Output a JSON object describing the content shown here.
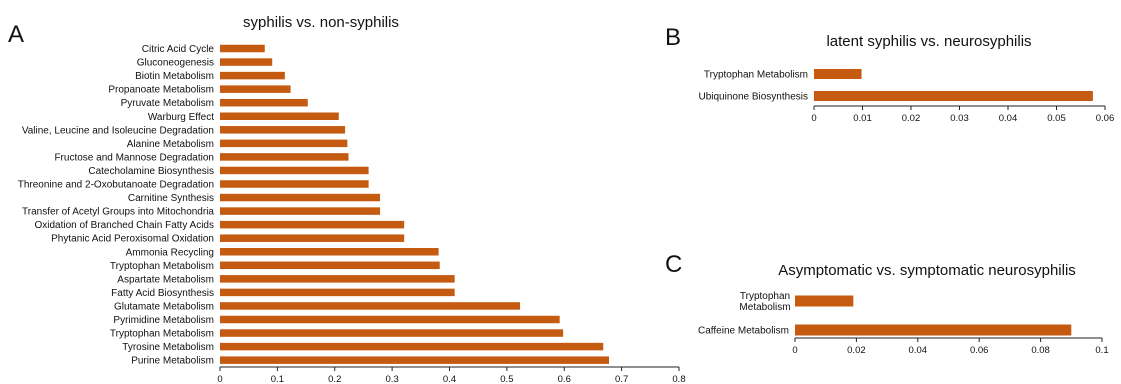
{
  "chart_data": [
    {
      "panel": "A",
      "type": "bar",
      "orientation": "horizontal",
      "title": "syphilis vs. non-syphilis",
      "categories": [
        "Citric Acid Cycle",
        "Gluconeogenesis",
        "Biotin Metabolism",
        "Propanoate Metabolism",
        "Pyruvate Metabolism",
        "Warburg Effect",
        "Valine, Leucine and Isoleucine Degradation",
        "Alanine Metabolism",
        "Fructose and Mannose Degradation",
        "Catecholamine Biosynthesis",
        "Threonine and 2-Oxobutanoate Degradation",
        "Carnitine Synthesis",
        "Transfer of Acetyl Groups into Mitochondria",
        "Oxidation of Branched Chain Fatty Acids",
        "Phytanic Acid Peroxisomal Oxidation",
        "Ammonia Recycling",
        "Tryptophan Metabolism",
        "Aspartate Metabolism",
        "Fatty Acid Biosynthesis",
        "Glutamate Metabolism",
        "Pyrimidine Metabolism",
        "Tryptophan Metabolism",
        "Tyrosine Metabolism",
        "Purine Metabolism"
      ],
      "values": [
        0.078,
        0.091,
        0.113,
        0.123,
        0.153,
        0.207,
        0.218,
        0.222,
        0.224,
        0.259,
        0.259,
        0.279,
        0.279,
        0.321,
        0.321,
        0.381,
        0.383,
        0.409,
        0.409,
        0.523,
        0.592,
        0.598,
        0.668,
        0.678
      ],
      "xticks": [
        "0",
        "0.1",
        "0.2",
        "0.3",
        "0.4",
        "0.5",
        "0.6",
        "0.7",
        "0.8"
      ],
      "xlim": [
        0,
        0.8
      ],
      "color": "#c55a11"
    },
    {
      "panel": "B",
      "type": "bar",
      "orientation": "horizontal",
      "title": "latent syphilis vs. neurosyphilis",
      "categories": [
        "Tryptophan Metabolism",
        "Ubiquinone Biosynthesis"
      ],
      "values": [
        0.0098,
        0.0575
      ],
      "xticks": [
        "0",
        "0.01",
        "0.02",
        "0.03",
        "0.04",
        "0.05",
        "0.06"
      ],
      "xlim": [
        0,
        0.06
      ],
      "color": "#c55a11"
    },
    {
      "panel": "C",
      "type": "bar",
      "orientation": "horizontal",
      "title": "Asymptomatic vs. symptomatic neurosyphilis",
      "categories": [
        "Tryptophan Metabolism",
        "Caffeine Metabolism"
      ],
      "values": [
        0.019,
        0.09
      ],
      "xticks": [
        "0",
        "0.02",
        "0.04",
        "0.06",
        "0.08",
        "0.1"
      ],
      "xlim": [
        0,
        0.1
      ],
      "color": "#c55a11"
    }
  ]
}
